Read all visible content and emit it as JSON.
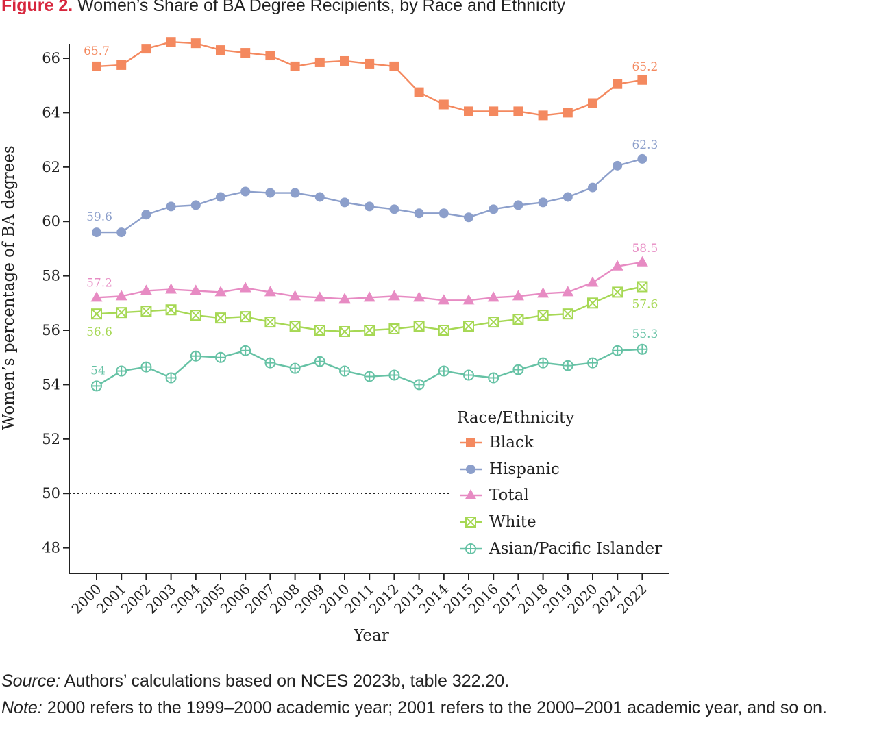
{
  "figure": {
    "label": "Figure 2.",
    "title": "Women’s Share of BA Degree Recipients, by Race and Ethnicity"
  },
  "chart_data": {
    "type": "line",
    "xlabel": "Year",
    "ylabel": "Women’s percentage of BA degrees",
    "x": [
      2000,
      2001,
      2002,
      2003,
      2004,
      2005,
      2006,
      2007,
      2008,
      2009,
      2010,
      2011,
      2012,
      2013,
      2014,
      2015,
      2016,
      2017,
      2018,
      2019,
      2020,
      2021,
      2022
    ],
    "ylim": [
      47,
      66.7
    ],
    "yticks": [
      48,
      50,
      52,
      54,
      56,
      58,
      60,
      62,
      64,
      66
    ],
    "reference_line": 50,
    "legend_title": "Race/Ethnicity",
    "series": [
      {
        "name": "Black",
        "color": "#f4895f",
        "marker": "square",
        "values": [
          65.7,
          65.75,
          66.35,
          66.6,
          66.55,
          66.3,
          66.2,
          66.1,
          65.7,
          65.85,
          65.9,
          65.8,
          65.7,
          64.75,
          64.3,
          64.05,
          64.05,
          64.05,
          63.9,
          64.0,
          64.35,
          65.05,
          65.2
        ],
        "start_label": "65.7",
        "end_label": "65.2"
      },
      {
        "name": "Hispanic",
        "color": "#8c9fcb",
        "marker": "circle",
        "values": [
          59.6,
          59.6,
          60.25,
          60.55,
          60.6,
          60.9,
          61.1,
          61.05,
          61.05,
          60.9,
          60.7,
          60.55,
          60.45,
          60.3,
          60.3,
          60.15,
          60.45,
          60.6,
          60.7,
          60.9,
          61.25,
          62.05,
          62.3
        ],
        "start_label": "59.6",
        "end_label": "62.3"
      },
      {
        "name": "Total",
        "color": "#e78bc3",
        "marker": "triangle",
        "values": [
          57.2,
          57.25,
          57.45,
          57.5,
          57.45,
          57.4,
          57.55,
          57.4,
          57.25,
          57.2,
          57.15,
          57.2,
          57.25,
          57.2,
          57.1,
          57.1,
          57.2,
          57.25,
          57.35,
          57.4,
          57.75,
          58.35,
          58.5
        ],
        "start_label": "57.2",
        "end_label": "58.5"
      },
      {
        "name": "White",
        "color": "#a6d854",
        "marker": "boxx",
        "values": [
          56.6,
          56.65,
          56.7,
          56.75,
          56.55,
          56.45,
          56.5,
          56.3,
          56.15,
          56.0,
          55.95,
          56.0,
          56.05,
          56.15,
          56.0,
          56.15,
          56.3,
          56.4,
          56.55,
          56.6,
          57.0,
          57.4,
          57.6
        ],
        "start_label": "56.6",
        "end_label": "57.6"
      },
      {
        "name": "Asian/Pacific Islander",
        "color": "#66c2a5",
        "marker": "circleplus",
        "values": [
          53.95,
          54.5,
          54.65,
          54.25,
          55.05,
          55.0,
          55.25,
          54.8,
          54.6,
          54.85,
          54.5,
          54.3,
          54.35,
          54.0,
          54.5,
          54.35,
          54.25,
          54.55,
          54.8,
          54.7,
          54.8,
          55.25,
          55.3
        ],
        "start_label": "54",
        "end_label": "55.3"
      }
    ]
  },
  "footer": {
    "source_label": "Source:",
    "source_text": " Authors’ calculations based on NCES 2023b, table 322.20.",
    "note_label": "Note:",
    "note_text": " 2000 refers to the 1999–2000 academic year; 2001 refers to the 2000–2001 academic year, and so on."
  }
}
